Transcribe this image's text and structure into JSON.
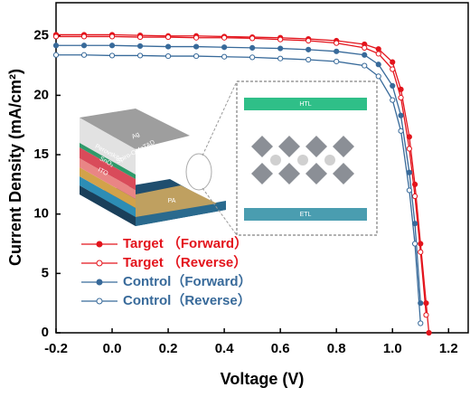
{
  "chart_data": {
    "type": "line",
    "xlabel": "Voltage (V)",
    "ylabel": "Current Density (mA/cm²)",
    "x": [
      -0.2,
      -0.1,
      0,
      0.1,
      0.2,
      0.3,
      0.4,
      0.5,
      0.6,
      0.7,
      0.8,
      0.9,
      0.95,
      1.0,
      1.03,
      1.06,
      1.08,
      1.1,
      1.12,
      1.13
    ],
    "series": [
      {
        "name": "Target （Forward）",
        "color": "#e3141c",
        "filled": true,
        "values": [
          25.1,
          25.1,
          25.1,
          25.05,
          25.0,
          25.0,
          24.95,
          24.9,
          24.85,
          24.75,
          24.6,
          24.3,
          23.9,
          22.8,
          20.5,
          16.5,
          12.5,
          7.5,
          2.5,
          0
        ]
      },
      {
        "name": "Target （Reverse）",
        "color": "#e3141c",
        "filled": false,
        "values": [
          24.95,
          24.95,
          24.95,
          24.9,
          24.9,
          24.85,
          24.85,
          24.8,
          24.7,
          24.6,
          24.4,
          24.0,
          23.5,
          22.2,
          19.8,
          15.5,
          11.5,
          6.8,
          1.5,
          null
        ]
      },
      {
        "name": "Control（Forward）",
        "color": "#386a9a",
        "filled": true,
        "values": [
          24.2,
          24.2,
          24.2,
          24.15,
          24.1,
          24.1,
          24.05,
          24.0,
          23.95,
          23.85,
          23.7,
          23.4,
          22.6,
          20.8,
          18.3,
          13.5,
          9.2,
          2.5,
          null,
          null
        ]
      },
      {
        "name": "Control（Reverse）",
        "color": "#386a9a",
        "filled": false,
        "values": [
          23.4,
          23.4,
          23.35,
          23.35,
          23.3,
          23.3,
          23.25,
          23.2,
          23.1,
          23.0,
          22.85,
          22.5,
          21.6,
          19.6,
          17.0,
          12.0,
          7.5,
          0.8,
          null,
          null
        ]
      }
    ],
    "xlim": [
      -0.2,
      1.27
    ],
    "ylim": [
      0,
      27.8
    ],
    "xticks": [
      -0.2,
      {
        "value": 0,
        "label": "0.0"
      },
      0.2,
      0.4,
      0.6,
      0.8,
      {
        "value": 1,
        "label": "1.0"
      },
      1.2
    ],
    "yticks": [
      0,
      5,
      10,
      15,
      20,
      25
    ],
    "annotations": [
      "Ag",
      "Spiro-OMeTAD",
      "Perovskite",
      "SnO₂",
      "ITO",
      "PA",
      "HTL",
      "ETL"
    ]
  }
}
